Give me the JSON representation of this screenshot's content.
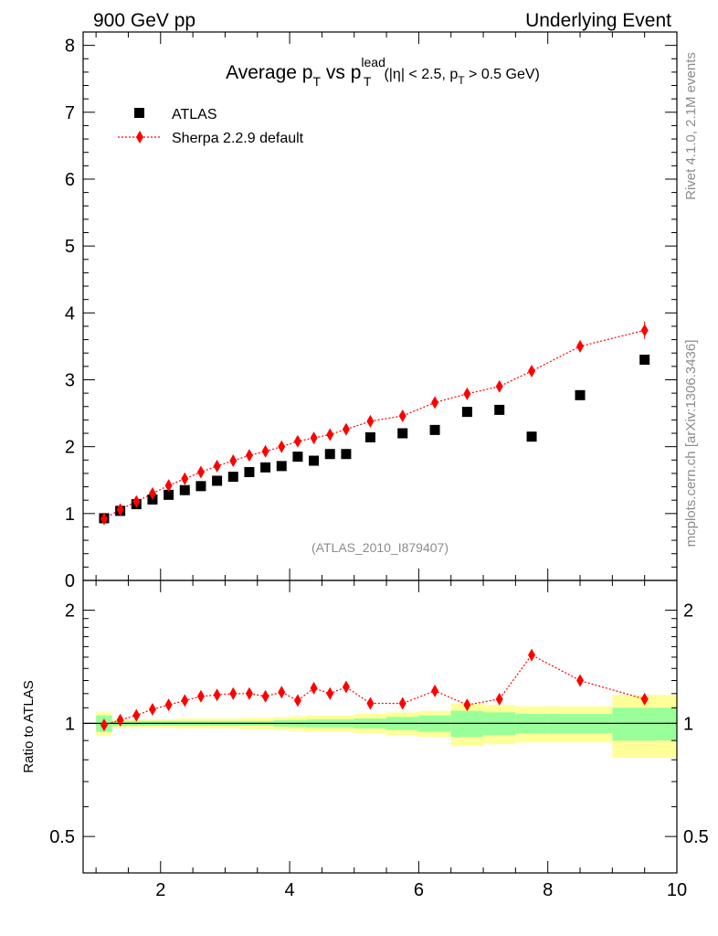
{
  "header": {
    "left": "900 GeV pp",
    "right": "Underlying Event"
  },
  "side": {
    "top": "Rivet 4.1.0,  2.1M events",
    "bottom": "mcplots.cern.ch [arXiv:1306.3436]"
  },
  "chart_data": {
    "type": "scatter",
    "title": {
      "main": "Average p",
      "sub1": "T",
      "mid": " vs p",
      "sup": "lead",
      "sub2": "T",
      "cut_a": "(|η| < 2.5, p",
      "cut_sub": "T",
      "cut_b": " > 0.5 GeV)"
    },
    "analysis_id": "(ATLAS_2010_I879407)",
    "x": [
      1.125,
      1.375,
      1.625,
      1.875,
      2.125,
      2.375,
      2.625,
      2.875,
      3.125,
      3.375,
      3.625,
      3.875,
      4.125,
      4.375,
      4.625,
      4.875,
      5.25,
      5.75,
      6.25,
      6.75,
      7.25,
      7.75,
      8.5,
      9.5
    ],
    "xlim": [
      0.8,
      10.0
    ],
    "xticks": [
      2,
      4,
      6,
      8,
      10
    ],
    "xticks_labels": [
      "2",
      "4",
      "6",
      "8",
      "10"
    ],
    "series": [
      {
        "name": "ATLAS",
        "marker": "square",
        "color": "#000000",
        "values": [
          0.93,
          1.04,
          1.14,
          1.21,
          1.28,
          1.35,
          1.41,
          1.49,
          1.55,
          1.62,
          1.69,
          1.71,
          1.85,
          1.79,
          1.89,
          1.89,
          2.14,
          2.2,
          2.25,
          2.52,
          2.55,
          2.15,
          2.77,
          3.3
        ]
      },
      {
        "name": "Sherpa 2.2.9 default",
        "marker": "diamond",
        "color": "#ff0000",
        "values": [
          0.92,
          1.06,
          1.18,
          1.3,
          1.42,
          1.52,
          1.62,
          1.71,
          1.79,
          1.87,
          1.93,
          2.0,
          2.08,
          2.13,
          2.18,
          2.26,
          2.38,
          2.46,
          2.66,
          2.79,
          2.9,
          3.13,
          3.5,
          3.74
        ],
        "errors": [
          0.02,
          0.02,
          0.02,
          0.02,
          0.02,
          0.02,
          0.02,
          0.02,
          0.02,
          0.02,
          0.03,
          0.03,
          0.03,
          0.03,
          0.03,
          0.03,
          0.04,
          0.04,
          0.05,
          0.05,
          0.06,
          0.07,
          0.08,
          0.13
        ]
      }
    ],
    "main_ylim": [
      0,
      8.2
    ],
    "main_yticks": [
      0,
      1,
      2,
      3,
      4,
      5,
      6,
      7,
      8
    ],
    "main_yticks_labels": [
      "0",
      "1",
      "2",
      "3",
      "4",
      "5",
      "6",
      "7",
      "8"
    ],
    "ratio": {
      "ylabel": "Ratio to ATLAS",
      "ylim": [
        0.4,
        2.4
      ],
      "yticks": [
        0.5,
        1,
        2
      ],
      "yticks_labels": [
        "0.5",
        "1",
        "2"
      ],
      "values": [
        0.99,
        1.02,
        1.05,
        1.09,
        1.12,
        1.15,
        1.18,
        1.19,
        1.2,
        1.2,
        1.18,
        1.21,
        1.15,
        1.24,
        1.2,
        1.25,
        1.13,
        1.13,
        1.22,
        1.12,
        1.16,
        1.52,
        1.3,
        1.16
      ],
      "bin_edges": [
        1.0,
        1.25,
        1.5,
        1.75,
        2.0,
        2.25,
        2.5,
        2.75,
        3.0,
        3.25,
        3.5,
        3.75,
        4.0,
        4.25,
        4.5,
        4.75,
        5.0,
        5.5,
        6.0,
        6.5,
        7.0,
        7.5,
        8.0,
        9.0,
        10.0
      ],
      "stat_band": [
        0.05,
        0.015,
        0.015,
        0.015,
        0.015,
        0.015,
        0.015,
        0.015,
        0.015,
        0.015,
        0.015,
        0.02,
        0.02,
        0.025,
        0.025,
        0.025,
        0.03,
        0.04,
        0.05,
        0.08,
        0.07,
        0.06,
        0.06,
        0.1
      ],
      "total_band": [
        0.07,
        0.025,
        0.025,
        0.025,
        0.025,
        0.03,
        0.03,
        0.03,
        0.03,
        0.035,
        0.035,
        0.04,
        0.045,
        0.05,
        0.05,
        0.05,
        0.06,
        0.07,
        0.08,
        0.13,
        0.12,
        0.11,
        0.11,
        0.19
      ],
      "stat_color": "#99ff99",
      "total_color": "#ffff99"
    }
  }
}
